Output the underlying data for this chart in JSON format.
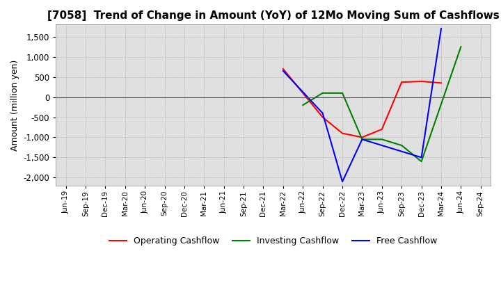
{
  "title": "[7058]  Trend of Change in Amount (YoY) of 12Mo Moving Sum of Cashflows",
  "ylabel": "Amount (million yen)",
  "ylim": [
    -2200,
    1800
  ],
  "yticks": [
    -2000,
    -1500,
    -1000,
    -500,
    0,
    500,
    1000,
    1500
  ],
  "x_labels": [
    "Jun-19",
    "Sep-19",
    "Dec-19",
    "Mar-20",
    "Jun-20",
    "Sep-20",
    "Dec-20",
    "Mar-21",
    "Jun-21",
    "Sep-21",
    "Dec-21",
    "Mar-22",
    "Jun-22",
    "Sep-22",
    "Dec-22",
    "Mar-23",
    "Jun-23",
    "Sep-23",
    "Dec-23",
    "Mar-24",
    "Jun-24",
    "Sep-24"
  ],
  "operating": [
    null,
    null,
    null,
    null,
    null,
    null,
    null,
    null,
    null,
    null,
    null,
    700,
    null,
    -500,
    -900,
    -1000,
    -800,
    370,
    390,
    350,
    null,
    null
  ],
  "investing": [
    null,
    null,
    null,
    null,
    null,
    null,
    null,
    null,
    null,
    null,
    null,
    null,
    -200,
    100,
    100,
    -1050,
    -1050,
    -1200,
    -1600,
    null,
    1250,
    null
  ],
  "free": [
    null,
    null,
    null,
    null,
    null,
    null,
    null,
    null,
    null,
    null,
    null,
    650,
    null,
    -400,
    -2100,
    -1050,
    null,
    null,
    -1500,
    1700,
    null,
    null
  ],
  "colors": {
    "operating": "#ff0000",
    "investing": "#008000",
    "free": "#0000ff"
  },
  "legend_labels": [
    "Operating Cashflow",
    "Investing Cashflow",
    "Free Cashflow"
  ],
  "grid_color": "#aaaaaa",
  "plot_bg": "#e8e8e8",
  "background_color": "#ffffff",
  "title_fontsize": 11
}
